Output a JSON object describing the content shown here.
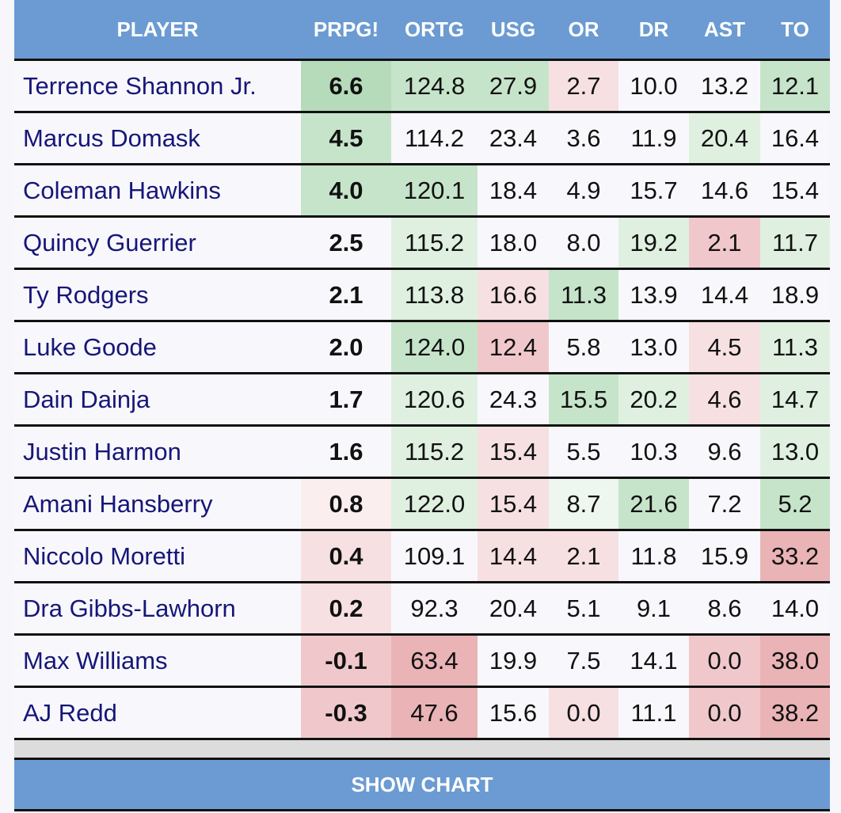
{
  "table": {
    "columns": [
      "PLAYER",
      "PRPG!",
      "ORTG",
      "USG",
      "OR",
      "DR",
      "AST",
      "TO"
    ],
    "rows": [
      [
        "Terrence Shannon Jr.",
        "6.6",
        "124.8",
        "27.9",
        "2.7",
        "10.0",
        "13.2",
        "12.1"
      ],
      [
        "Marcus Domask",
        "4.5",
        "114.2",
        "23.4",
        "3.6",
        "11.9",
        "20.4",
        "16.4"
      ],
      [
        "Coleman Hawkins",
        "4.0",
        "120.1",
        "18.4",
        "4.9",
        "15.7",
        "14.6",
        "15.4"
      ],
      [
        "Quincy Guerrier",
        "2.5",
        "115.2",
        "18.0",
        "8.0",
        "19.2",
        "2.1",
        "11.7"
      ],
      [
        "Ty Rodgers",
        "2.1",
        "113.8",
        "16.6",
        "11.3",
        "13.9",
        "14.4",
        "18.9"
      ],
      [
        "Luke Goode",
        "2.0",
        "124.0",
        "12.4",
        "5.8",
        "13.0",
        "4.5",
        "11.3"
      ],
      [
        "Dain Dainja",
        "1.7",
        "120.6",
        "24.3",
        "15.5",
        "20.2",
        "4.6",
        "14.7"
      ],
      [
        "Justin Harmon",
        "1.6",
        "115.2",
        "15.4",
        "5.5",
        "10.3",
        "9.6",
        "13.0"
      ],
      [
        "Amani Hansberry",
        "0.8",
        "122.0",
        "15.4",
        "8.7",
        "21.6",
        "7.2",
        "5.2"
      ],
      [
        "Niccolo Moretti",
        "0.4",
        "109.1",
        "14.4",
        "2.1",
        "11.8",
        "15.9",
        "33.2"
      ],
      [
        "Dra Gibbs-Lawhorn",
        "0.2",
        "92.3",
        "20.4",
        "5.1",
        "9.1",
        "8.6",
        "14.0"
      ],
      [
        "Max Williams",
        "-0.1",
        "63.4",
        "19.9",
        "7.5",
        "14.1",
        "0.0",
        "38.0"
      ],
      [
        "AJ Redd",
        "-0.3",
        "47.6",
        "15.6",
        "0.0",
        "11.1",
        "0.0",
        "38.2"
      ]
    ]
  },
  "button": "SHOW CHART"
}
